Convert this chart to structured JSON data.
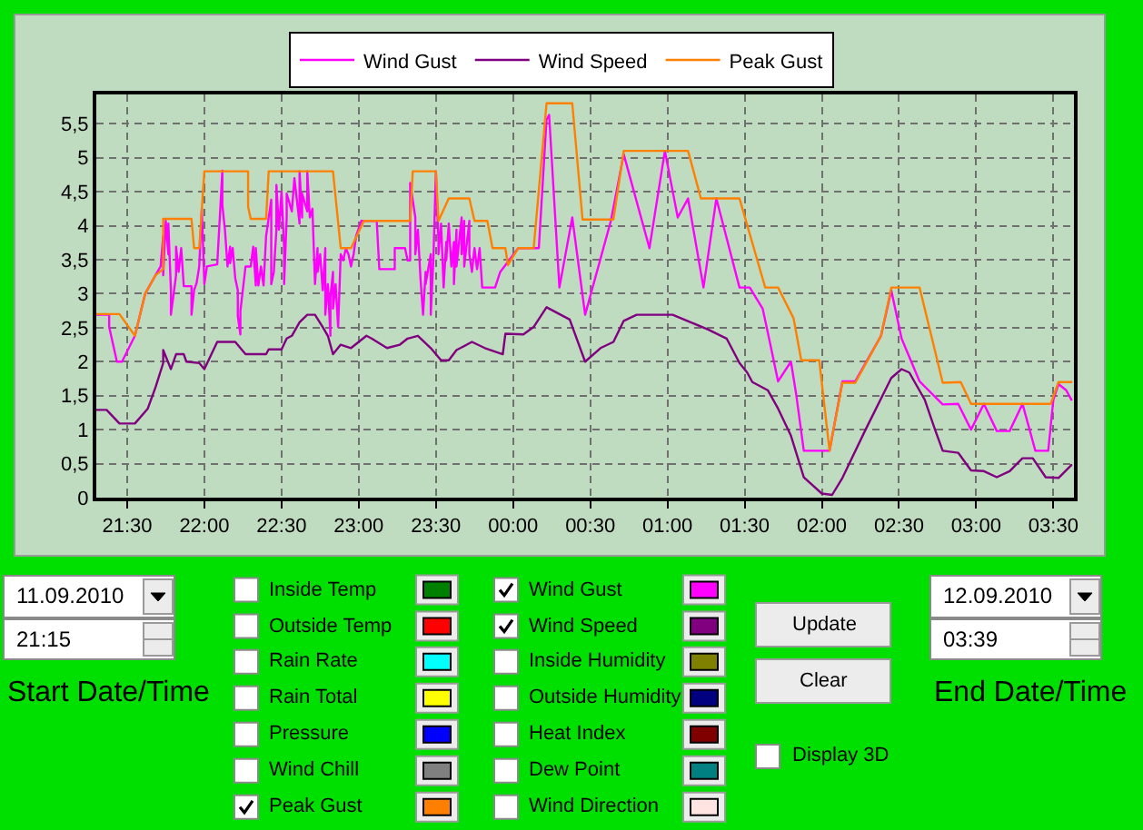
{
  "chart_data": {
    "type": "line",
    "legend": "top",
    "grid": true,
    "line_style": "solid",
    "xlim": [
      "2010-09-11T21:18",
      "2010-09-12T03:38"
    ],
    "xticks": [
      {
        "value": "2010-09-11T21:30",
        "label": "21:30"
      },
      {
        "value": "2010-09-11T22:00",
        "label": "22:00"
      },
      {
        "value": "2010-09-11T22:30",
        "label": "22:30"
      },
      {
        "value": "2010-09-11T23:00",
        "label": "23:00"
      },
      {
        "value": "2010-09-11T23:30",
        "label": "23:30"
      },
      {
        "value": "2010-09-12T00:00",
        "label": "00:00"
      },
      {
        "value": "2010-09-12T00:30",
        "label": "00:30"
      },
      {
        "value": "2010-09-12T01:00",
        "label": "01:00"
      },
      {
        "value": "2010-09-12T01:30",
        "label": "01:30"
      },
      {
        "value": "2010-09-12T02:00",
        "label": "02:00"
      },
      {
        "value": "2010-09-12T02:30",
        "label": "02:30"
      },
      {
        "value": "2010-09-12T03:00",
        "label": "03:00"
      },
      {
        "value": "2010-09-12T03:30",
        "label": "03:30"
      }
    ],
    "ylim": [
      0,
      5.93
    ],
    "yticks": [
      0,
      {
        "value": 0.5,
        "label": "0,5"
      },
      1,
      {
        "value": 1.5,
        "label": "1,5"
      },
      2,
      {
        "value": 2.5,
        "label": "2,5"
      },
      3,
      {
        "value": 3.5,
        "label": "3,5"
      },
      4,
      {
        "value": 4.5,
        "label": "4,5"
      },
      5,
      {
        "value": 5.5,
        "label": "5,5"
      }
    ],
    "series": [
      {
        "name": "Wind Gust",
        "color": "#ff00ff",
        "x": [
          "2010-09-11T21:18",
          "2010-09-11T21:23",
          "2010-09-11T21:23",
          "2010-09-11T21:26",
          "2010-09-11T21:28",
          "2010-09-11T21:33",
          "2010-09-11T21:37",
          "2010-09-11T21:41",
          "2010-09-11T21:43",
          "2010-09-11T21:44",
          "2010-09-11T21:44",
          "2010-09-11T21:45",
          "2010-09-11T21:46",
          "2010-09-11T21:46",
          "2010-09-11T21:47",
          "2010-09-11T21:47",
          "2010-09-11T21:49",
          "2010-09-11T21:49",
          "2010-09-11T21:50",
          "2010-09-11T21:51",
          "2010-09-11T21:52",
          "2010-09-11T21:55",
          "2010-09-11T21:55",
          "2010-09-11T21:56",
          "2010-09-11T21:57",
          "2010-09-11T21:58",
          "2010-09-11T21:59",
          "2010-09-11T22:00",
          "2010-09-11T22:01",
          "2010-09-11T22:05",
          "2010-09-11T22:07",
          "2010-09-11T22:07",
          "2010-09-11T22:08",
          "2010-09-11T22:09",
          "2010-09-11T22:10",
          "2010-09-11T22:10",
          "2010-09-11T22:11",
          "2010-09-11T22:12",
          "2010-09-11T22:13",
          "2010-09-11T22:13",
          "2010-09-11T22:14",
          "2010-09-11T22:14",
          "2010-09-11T22:16",
          "2010-09-11T22:18",
          "2010-09-11T22:19",
          "2010-09-11T22:20",
          "2010-09-11T22:20",
          "2010-09-11T22:21",
          "2010-09-11T22:22",
          "2010-09-11T22:23",
          "2010-09-11T22:24",
          "2010-09-11T22:26",
          "2010-09-11T22:26",
          "2010-09-11T22:27",
          "2010-09-11T22:28",
          "2010-09-11T22:28",
          "2010-09-11T22:29",
          "2010-09-11T22:30",
          "2010-09-11T22:31",
          "2010-09-11T22:31",
          "2010-09-11T22:32",
          "2010-09-11T22:32",
          "2010-09-11T22:34",
          "2010-09-11T22:35",
          "2010-09-11T22:37",
          "2010-09-11T22:37",
          "2010-09-11T22:38",
          "2010-09-11T22:38",
          "2010-09-11T22:40",
          "2010-09-11T22:40",
          "2010-09-11T22:41",
          "2010-09-11T22:42",
          "2010-09-11T22:43",
          "2010-09-11T22:44",
          "2010-09-11T22:44",
          "2010-09-11T22:45",
          "2010-09-11T22:46",
          "2010-09-11T22:47",
          "2010-09-11T22:47",
          "2010-09-11T22:48",
          "2010-09-11T22:49",
          "2010-09-11T22:49",
          "2010-09-11T22:50",
          "2010-09-11T22:50",
          "2010-09-11T22:51",
          "2010-09-11T22:52",
          "2010-09-11T22:53",
          "2010-09-11T22:54",
          "2010-09-11T22:55",
          "2010-09-11T22:56",
          "2010-09-11T22:57",
          "2010-09-11T22:58",
          "2010-09-11T22:59",
          "2010-09-11T23:01",
          "2010-09-11T23:07",
          "2010-09-11T23:08",
          "2010-09-11T23:14",
          "2010-09-11T23:14",
          "2010-09-11T23:18",
          "2010-09-11T23:19",
          "2010-09-11T23:20",
          "2010-09-11T23:20",
          "2010-09-11T23:22",
          "2010-09-11T23:22",
          "2010-09-11T23:23",
          "2010-09-11T23:24",
          "2010-09-11T23:25",
          "2010-09-11T23:26",
          "2010-09-11T23:26",
          "2010-09-11T23:28",
          "2010-09-11T23:28",
          "2010-09-11T23:29",
          "2010-09-11T23:30",
          "2010-09-11T23:31",
          "2010-09-11T23:31",
          "2010-09-11T23:32",
          "2010-09-11T23:33",
          "2010-09-11T23:34",
          "2010-09-11T23:34",
          "2010-09-11T23:35",
          "2010-09-11T23:36",
          "2010-09-11T23:37",
          "2010-09-11T23:37",
          "2010-09-11T23:38",
          "2010-09-11T23:38",
          "2010-09-11T23:40",
          "2010-09-11T23:40",
          "2010-09-11T23:41",
          "2010-09-11T23:41",
          "2010-09-11T23:43",
          "2010-09-11T23:43",
          "2010-09-11T23:44",
          "2010-09-11T23:45",
          "2010-09-11T23:46",
          "2010-09-11T23:47",
          "2010-09-11T23:48",
          "2010-09-11T23:53",
          "2010-09-11T23:55",
          "2010-09-11T23:57",
          "2010-09-12T00:02",
          "2010-09-12T00:08",
          "2010-09-12T00:10",
          "2010-09-12T00:13",
          "2010-09-12T00:14",
          "2010-09-12T00:18",
          "2010-09-12T00:23",
          "2010-09-12T00:28",
          "2010-09-12T00:38",
          "2010-09-12T00:43",
          "2010-09-12T00:53",
          "2010-09-12T00:59",
          "2010-09-12T01:04",
          "2010-09-12T01:08",
          "2010-09-12T01:14",
          "2010-09-12T01:19",
          "2010-09-12T01:28",
          "2010-09-12T01:32",
          "2010-09-12T01:37",
          "2010-09-12T01:40",
          "2010-09-12T01:43",
          "2010-09-12T01:48",
          "2010-09-12T01:50",
          "2010-09-12T01:53",
          "2010-09-12T02:03",
          "2010-09-12T02:08",
          "2010-09-12T02:13",
          "2010-09-12T02:23",
          "2010-09-12T02:27",
          "2010-09-12T02:31",
          "2010-09-12T02:38",
          "2010-09-12T02:47",
          "2010-09-12T02:53",
          "2010-09-12T02:58",
          "2010-09-12T03:03",
          "2010-09-12T03:08",
          "2010-09-12T03:13",
          "2010-09-12T03:18",
          "2010-09-12T03:23",
          "2010-09-12T03:28",
          "2010-09-12T03:30",
          "2010-09-12T03:32",
          "2010-09-12T03:35",
          "2010-09-12T03:37"
        ],
        "values": [
          2.69,
          2.69,
          2.51,
          2.0,
          2.0,
          2.38,
          3.0,
          3.27,
          3.4,
          3.85,
          3.27,
          4.07,
          3.58,
          4.03,
          3.05,
          2.69,
          3.27,
          3.69,
          3.32,
          3.67,
          3.11,
          3.11,
          2.69,
          3.05,
          3.16,
          3.4,
          4.25,
          3.14,
          3.4,
          3.43,
          4.81,
          4.3,
          3.94,
          3.4,
          3.69,
          3.45,
          3.67,
          3.23,
          3.05,
          2.67,
          2.4,
          2.74,
          3.4,
          3.4,
          3.69,
          3.12,
          3.67,
          3.12,
          3.4,
          3.12,
          3.85,
          4.38,
          3.14,
          3.32,
          3.94,
          4.6,
          3.94,
          4.5,
          3.67,
          3.14,
          4.12,
          4.47,
          4.21,
          4.7,
          4.03,
          4.8,
          4.12,
          4.47,
          4.21,
          4.8,
          4.12,
          4.25,
          3.14,
          3.67,
          3.32,
          3.58,
          3.05,
          3.67,
          2.69,
          3.14,
          2.38,
          2.96,
          3.32,
          2.78,
          3.14,
          2.51,
          3.58,
          3.49,
          3.67,
          3.58,
          3.4,
          3.58,
          3.85,
          4.07,
          4.07,
          3.36,
          3.36,
          3.67,
          3.67,
          3.49,
          3.49,
          4.63,
          4.12,
          3.58,
          3.94,
          3.23,
          2.69,
          3.32,
          3.14,
          3.58,
          2.69,
          3.49,
          4.8,
          3.76,
          3.58,
          4.03,
          3.09,
          3.76,
          3.49,
          4.03,
          3.4,
          3.76,
          3.14,
          3.94,
          3.4,
          4.12,
          3.58,
          4.07,
          3.4,
          4.07,
          3.58,
          3.32,
          3.67,
          3.36,
          3.67,
          3.09,
          3.09,
          3.32,
          3.42,
          3.67,
          3.67,
          3.67,
          5.56,
          5.63,
          3.09,
          4.12,
          2.69,
          4.07,
          5.05,
          3.67,
          5.1,
          4.12,
          4.4,
          3.09,
          4.4,
          3.09,
          3.09,
          2.78,
          2.25,
          1.71,
          2.0,
          1.53,
          0.69,
          0.69,
          1.71,
          1.71,
          2.38,
          3.05,
          2.34,
          1.71,
          1.37,
          1.38,
          1.0,
          1.38,
          0.98,
          0.98,
          1.38,
          0.69,
          0.69,
          1.44,
          1.67,
          1.58,
          1.44
        ]
      },
      {
        "name": "Wind Speed",
        "color": "#800080",
        "x": [
          "2010-09-11T21:18",
          "2010-09-11T21:22",
          "2010-09-11T21:27",
          "2010-09-11T21:33",
          "2010-09-11T21:38",
          "2010-09-11T21:41",
          "2010-09-11T21:44",
          "2010-09-11T21:44",
          "2010-09-11T21:47",
          "2010-09-11T21:49",
          "2010-09-11T21:52",
          "2010-09-11T21:53",
          "2010-09-11T21:58",
          "2010-09-11T22:00",
          "2010-09-11T22:05",
          "2010-09-11T22:12",
          "2010-09-11T22:16",
          "2010-09-11T22:24",
          "2010-09-11T22:25",
          "2010-09-11T22:30",
          "2010-09-11T22:32",
          "2010-09-11T22:34",
          "2010-09-11T22:37",
          "2010-09-11T22:40",
          "2010-09-11T22:43",
          "2010-09-11T22:46",
          "2010-09-11T22:48",
          "2010-09-11T22:50",
          "2010-09-11T22:53",
          "2010-09-11T22:57",
          "2010-09-11T23:03",
          "2010-09-11T23:05",
          "2010-09-11T23:11",
          "2010-09-11T23:16",
          "2010-09-11T23:19",
          "2010-09-11T23:23",
          "2010-09-11T23:28",
          "2010-09-11T23:32",
          "2010-09-11T23:35",
          "2010-09-11T23:38",
          "2010-09-11T23:44",
          "2010-09-11T23:49",
          "2010-09-11T23:56",
          "2010-09-11T23:57",
          "2010-09-12T00:04",
          "2010-09-12T00:08",
          "2010-09-12T00:13",
          "2010-09-12T00:22",
          "2010-09-12T00:28",
          "2010-09-12T00:34",
          "2010-09-12T00:39",
          "2010-09-12T00:43",
          "2010-09-12T00:48",
          "2010-09-12T01:02",
          "2010-09-12T01:09",
          "2010-09-12T01:16",
          "2010-09-12T01:23",
          "2010-09-12T01:28",
          "2010-09-12T01:31",
          "2010-09-12T01:33",
          "2010-09-12T01:39",
          "2010-09-12T01:43",
          "2010-09-12T01:48",
          "2010-09-12T01:53",
          "2010-09-12T02:00",
          "2010-09-12T02:04",
          "2010-09-12T02:08",
          "2010-09-12T02:17",
          "2010-09-12T02:27",
          "2010-09-12T02:31",
          "2010-09-12T02:34",
          "2010-09-12T02:40",
          "2010-09-12T02:44",
          "2010-09-12T02:47",
          "2010-09-12T02:53",
          "2010-09-12T02:58",
          "2010-09-12T03:03",
          "2010-09-12T03:08",
          "2010-09-12T03:13",
          "2010-09-12T03:18",
          "2010-09-12T03:22",
          "2010-09-12T03:27",
          "2010-09-12T03:32",
          "2010-09-12T03:37"
        ],
        "values": [
          1.29,
          1.29,
          1.09,
          1.09,
          1.31,
          1.62,
          1.98,
          2.17,
          1.89,
          2.11,
          2.11,
          2.0,
          1.98,
          1.89,
          2.29,
          2.29,
          2.11,
          2.11,
          2.18,
          2.18,
          2.34,
          2.38,
          2.58,
          2.69,
          2.69,
          2.51,
          2.38,
          2.11,
          2.25,
          2.2,
          2.38,
          2.34,
          2.2,
          2.25,
          2.34,
          2.38,
          2.2,
          2.02,
          2.02,
          2.17,
          2.29,
          2.2,
          2.11,
          2.41,
          2.4,
          2.51,
          2.8,
          2.62,
          2.0,
          2.2,
          2.29,
          2.6,
          2.69,
          2.69,
          2.58,
          2.47,
          2.34,
          1.98,
          1.84,
          1.7,
          1.58,
          1.31,
          0.91,
          0.3,
          0.06,
          0.04,
          0.29,
          1.0,
          1.76,
          1.89,
          1.84,
          1.44,
          1.0,
          0.69,
          0.66,
          0.4,
          0.39,
          0.3,
          0.39,
          0.58,
          0.58,
          0.3,
          0.29,
          0.48
        ]
      },
      {
        "name": "Peak Gust",
        "color": "#ff8000",
        "x": [
          "2010-09-11T21:18",
          "2010-09-11T21:27",
          "2010-09-11T21:33",
          "2010-09-11T21:37",
          "2010-09-11T21:41",
          "2010-09-11T21:44",
          "2010-09-11T21:44",
          "2010-09-11T21:55",
          "2010-09-11T21:56",
          "2010-09-11T21:58",
          "2010-09-11T22:00",
          "2010-09-11T22:17",
          "2010-09-11T22:17",
          "2010-09-11T22:18",
          "2010-09-11T22:24",
          "2010-09-11T22:25",
          "2010-09-11T22:50",
          "2010-09-11T22:53",
          "2010-09-11T22:57",
          "2010-09-11T23:02",
          "2010-09-11T23:20",
          "2010-09-11T23:21",
          "2010-09-11T23:30",
          "2010-09-11T23:31",
          "2010-09-11T23:35",
          "2010-09-11T23:43",
          "2010-09-11T23:45",
          "2010-09-11T23:50",
          "2010-09-11T23:52",
          "2010-09-11T23:57",
          "2010-09-11T23:58",
          "2010-09-12T00:02",
          "2010-09-12T00:08",
          "2010-09-12T00:10",
          "2010-09-12T00:13",
          "2010-09-12T00:23",
          "2010-09-12T00:27",
          "2010-09-12T00:39",
          "2010-09-12T00:43",
          "2010-09-12T01:08",
          "2010-09-12T01:13",
          "2010-09-12T01:28",
          "2010-09-12T01:38",
          "2010-09-12T01:43",
          "2010-09-12T01:49",
          "2010-09-12T01:52",
          "2010-09-12T01:59",
          "2010-09-12T02:03",
          "2010-09-12T02:08",
          "2010-09-12T02:13",
          "2010-09-12T02:23",
          "2010-09-12T02:27",
          "2010-09-12T02:38",
          "2010-09-12T02:47",
          "2010-09-12T02:54",
          "2010-09-12T02:58",
          "2010-09-12T03:29",
          "2010-09-12T03:32",
          "2010-09-12T03:37"
        ],
        "values": [
          2.7,
          2.7,
          2.38,
          3.0,
          3.27,
          3.36,
          4.1,
          4.1,
          3.67,
          3.67,
          4.8,
          4.8,
          4.28,
          4.1,
          4.1,
          4.8,
          4.8,
          3.67,
          3.67,
          4.07,
          4.07,
          4.8,
          4.8,
          4.07,
          4.4,
          4.4,
          4.07,
          4.07,
          3.67,
          3.67,
          3.42,
          3.67,
          3.67,
          4.52,
          5.8,
          5.8,
          4.09,
          4.09,
          5.1,
          5.1,
          4.4,
          4.4,
          3.09,
          3.09,
          2.64,
          2.02,
          2.02,
          0.69,
          1.69,
          1.69,
          2.38,
          3.09,
          3.09,
          1.69,
          1.7,
          1.38,
          1.38,
          1.7,
          1.7
        ]
      }
    ],
    "annotations": [
      "11.09.2010",
      "21:15",
      "Start Date/Time",
      "Inside Temp",
      "Outside Temp",
      "Rain Rate",
      "Rain Total",
      "Pressure",
      "Wind Chill",
      "Peak Gust",
      "Wind Gust",
      "Wind Speed",
      "Inside Humidity",
      "Outside Humidity",
      "Heat Index",
      "Dew Point",
      "Wind Direction",
      "Update",
      "Clear",
      "Display 3D",
      "12.09.2010",
      "03:39",
      "End Date/Time"
    ]
  }
}
